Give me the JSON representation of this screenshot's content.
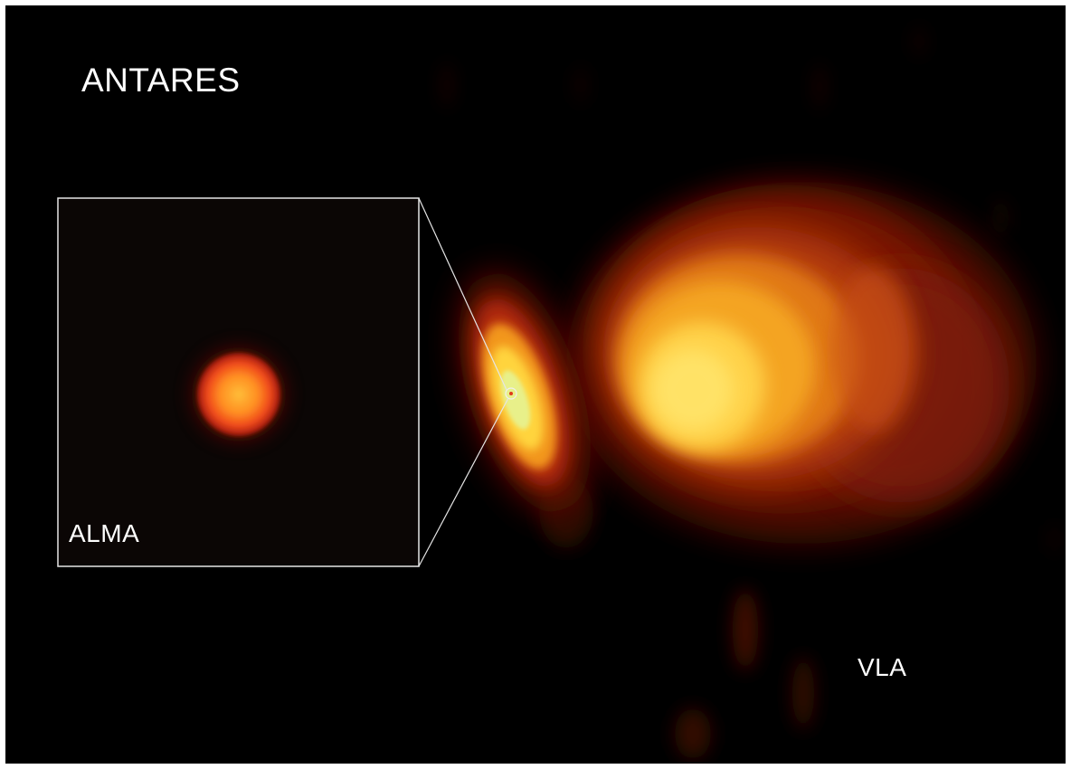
{
  "image": {
    "title": "ANTARES",
    "inset_label": "ALMA",
    "main_label": "VLA",
    "colors": {
      "background": "#000000",
      "emission_core": "#ffe66a",
      "emission_mid": "#f4a21f",
      "emission_edge": "#8a1008",
      "inset_star_core": "#ffb22a",
      "inset_star_edge": "#e8321c",
      "inset_background": "#0b0605",
      "outline": "#e6e6e6",
      "text": "#ffffff"
    }
  }
}
